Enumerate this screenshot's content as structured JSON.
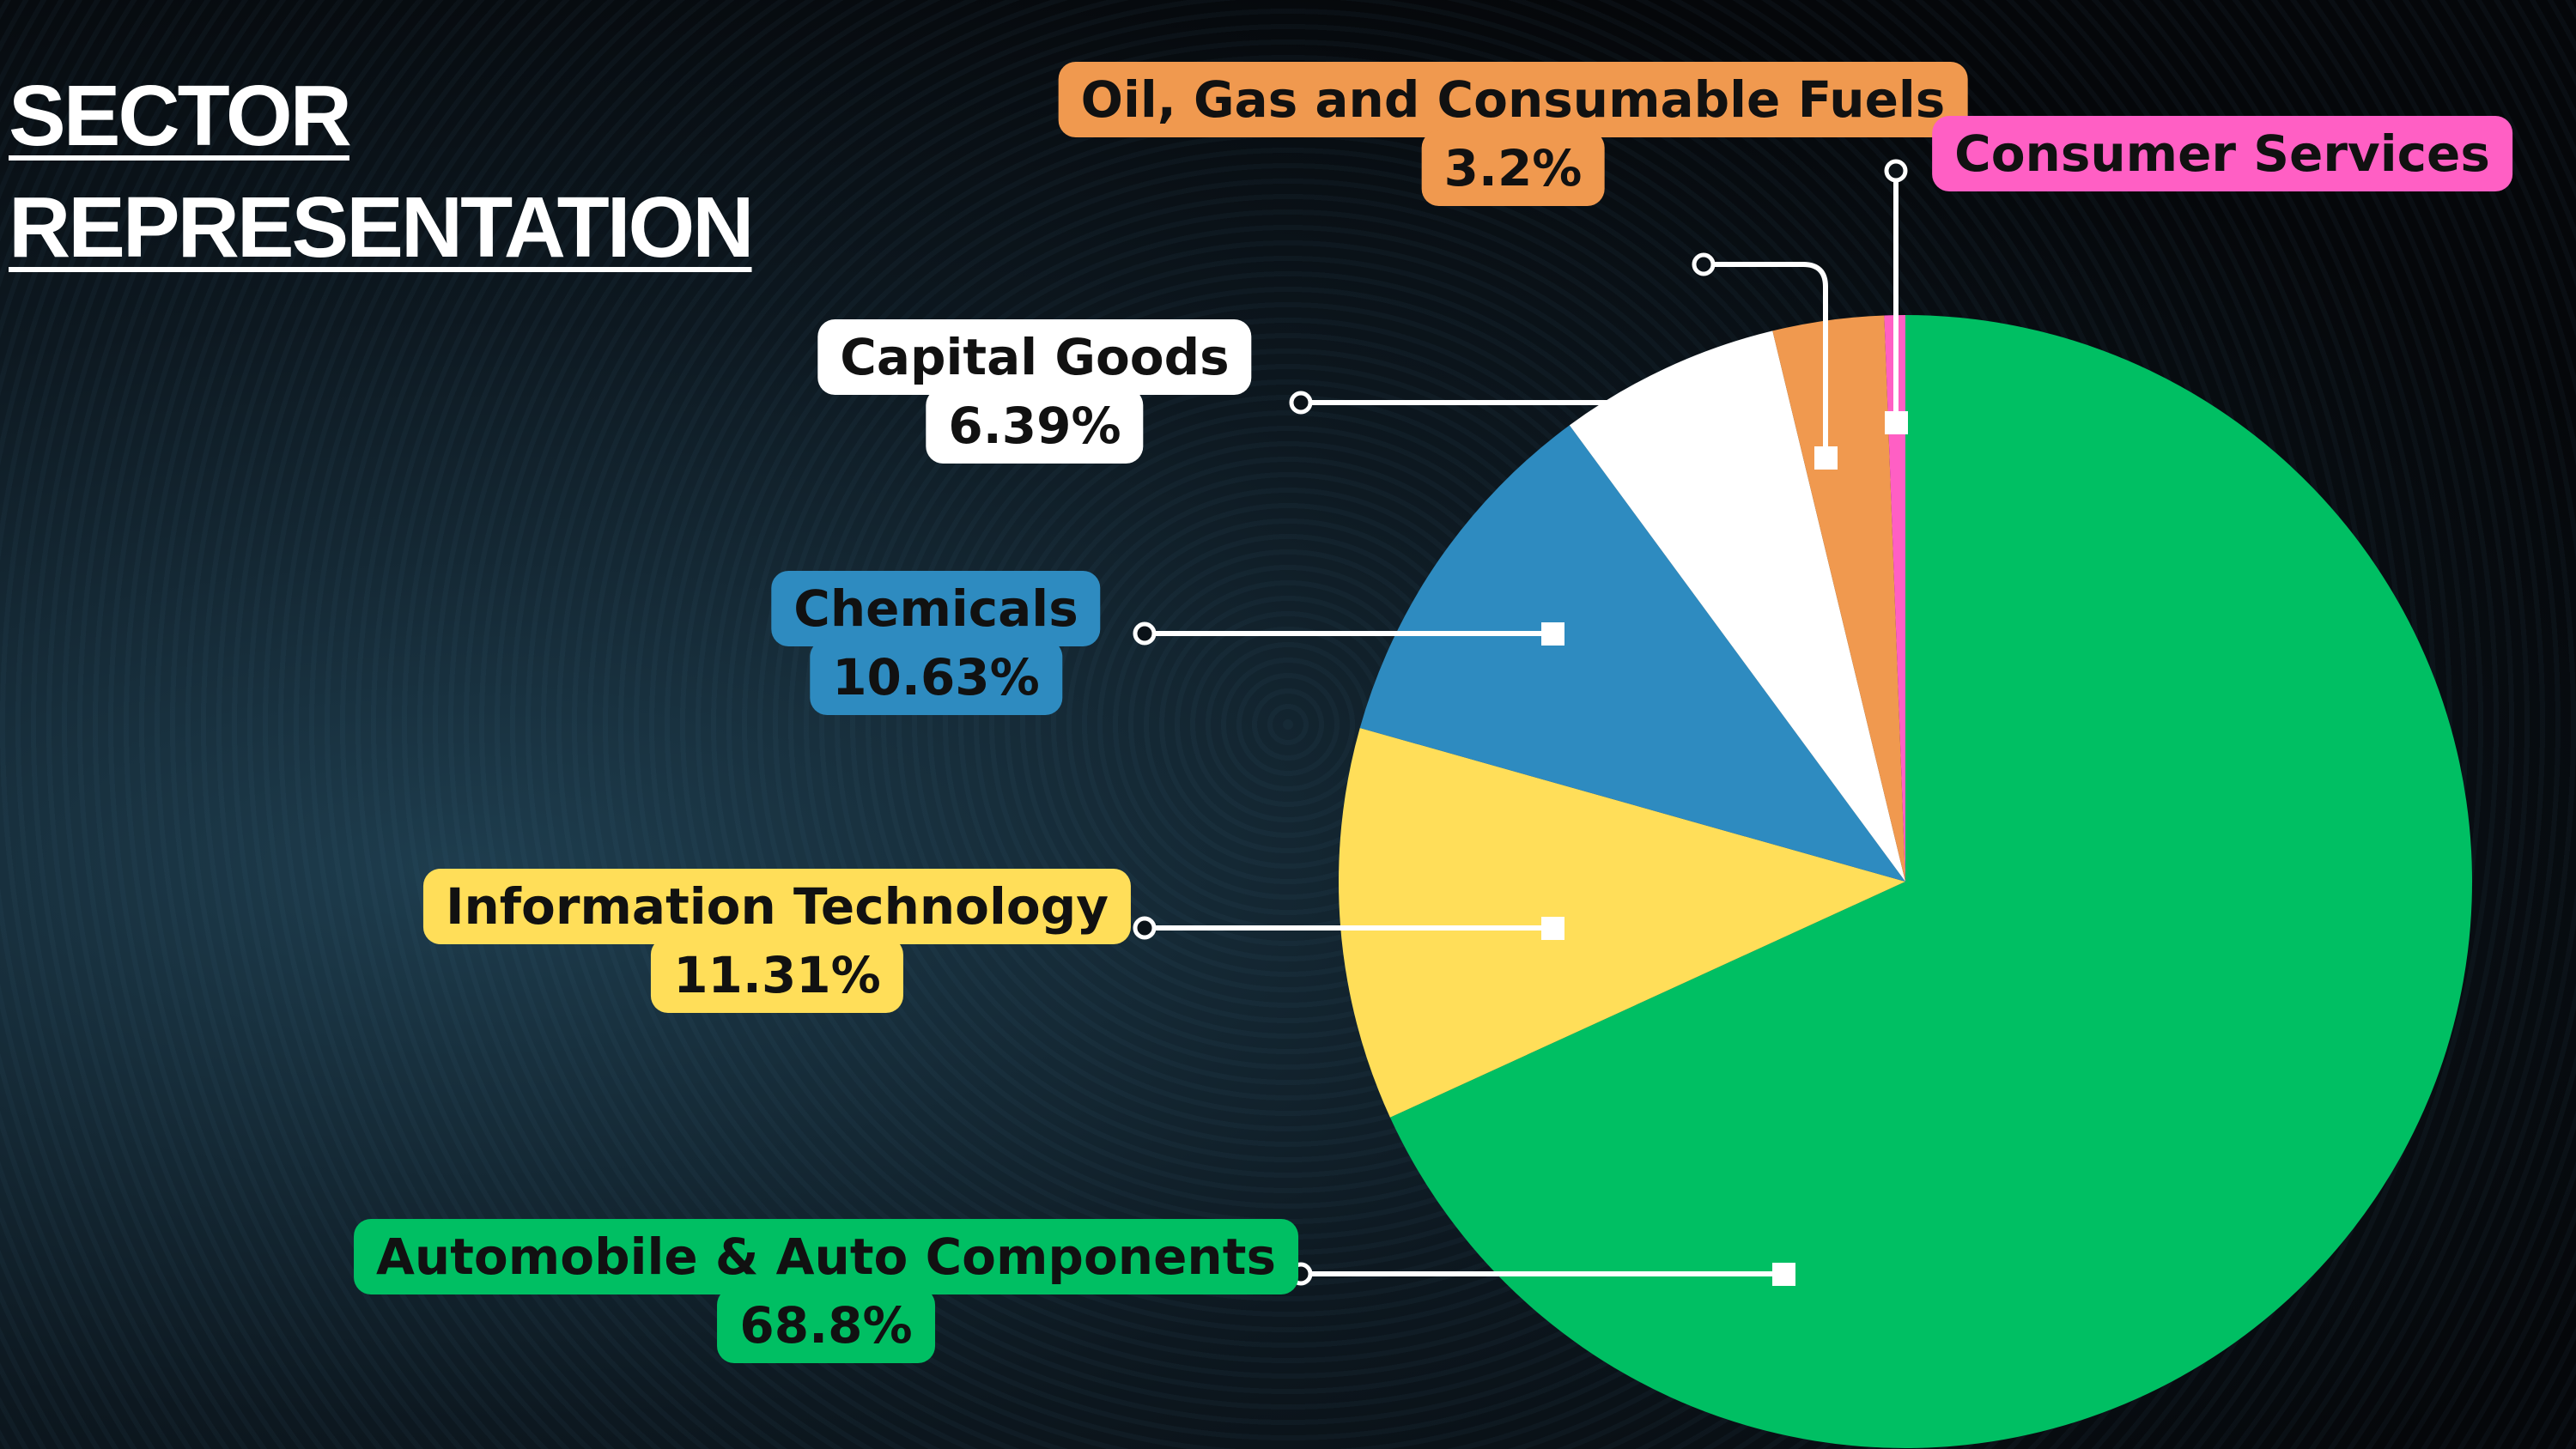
{
  "chart_data": {
    "type": "pie",
    "title": "SECTOR REPRESENTATION",
    "categories": [
      "Automobile & Auto Components",
      "Information Technology",
      "Chemicals",
      "Capital Goods",
      "Oil, Gas and Consumable Fuels",
      "Consumer Services"
    ],
    "values": [
      68.8,
      11.31,
      10.63,
      6.39,
      3.2,
      0.6
    ],
    "value_labels": [
      "68.8%",
      "11.31%",
      "10.63%",
      "6.39%",
      "3.2%",
      null
    ],
    "colors": [
      "#00bf63",
      "#ffde59",
      "#2e8bc0",
      "#ffffff",
      "#f0994f",
      "#ff5fc4"
    ],
    "start_angle": 0,
    "direction": "clockwise"
  }
}
